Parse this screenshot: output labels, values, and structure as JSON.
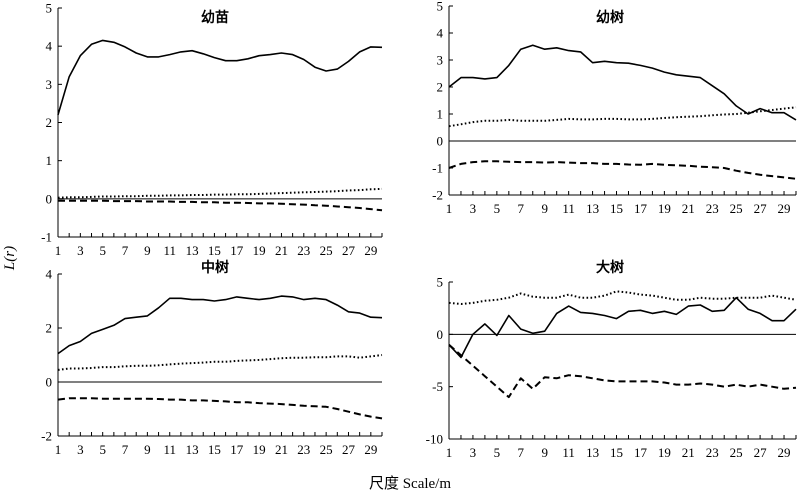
{
  "figure": {
    "ylabel": "L(r)",
    "xlabel": "尺度 Scale/m"
  },
  "chart_data": [
    {
      "type": "line",
      "title": "幼苗",
      "ylim": [
        -1,
        5
      ],
      "yticks": [
        -1,
        0,
        1,
        2,
        3,
        4,
        5
      ],
      "xlim": [
        1,
        30
      ],
      "xticks": [
        1,
        3,
        5,
        7,
        9,
        11,
        13,
        15,
        17,
        19,
        21,
        23,
        25,
        27,
        29
      ],
      "x": [
        1,
        2,
        3,
        4,
        5,
        6,
        7,
        8,
        9,
        10,
        11,
        12,
        13,
        14,
        15,
        16,
        17,
        18,
        19,
        20,
        21,
        22,
        23,
        24,
        25,
        26,
        27,
        28,
        29,
        30
      ],
      "series": [
        {
          "style": "solid",
          "values": [
            2.2,
            3.2,
            3.75,
            4.05,
            4.15,
            4.1,
            3.98,
            3.82,
            3.72,
            3.72,
            3.78,
            3.85,
            3.88,
            3.8,
            3.7,
            3.62,
            3.62,
            3.67,
            3.75,
            3.78,
            3.82,
            3.78,
            3.65,
            3.45,
            3.35,
            3.4,
            3.6,
            3.85,
            3.98,
            3.97
          ]
        },
        {
          "style": "dotted",
          "values": [
            0.03,
            0.04,
            0.04,
            0.05,
            0.06,
            0.06,
            0.07,
            0.07,
            0.08,
            0.08,
            0.09,
            0.09,
            0.1,
            0.1,
            0.11,
            0.11,
            0.12,
            0.12,
            0.13,
            0.14,
            0.15,
            0.16,
            0.17,
            0.18,
            0.19,
            0.2,
            0.22,
            0.23,
            0.25,
            0.26
          ]
        },
        {
          "style": "dashed",
          "values": [
            -0.05,
            -0.05,
            -0.05,
            -0.05,
            -0.05,
            -0.06,
            -0.06,
            -0.06,
            -0.07,
            -0.07,
            -0.07,
            -0.08,
            -0.08,
            -0.09,
            -0.09,
            -0.1,
            -0.1,
            -0.11,
            -0.12,
            -0.12,
            -0.13,
            -0.14,
            -0.15,
            -0.17,
            -0.18,
            -0.2,
            -0.22,
            -0.24,
            -0.27,
            -0.3
          ]
        }
      ]
    },
    {
      "type": "line",
      "title": "幼树",
      "ylim": [
        -2,
        5
      ],
      "yticks": [
        -2,
        -1,
        0,
        1,
        2,
        3,
        4,
        5
      ],
      "xlim": [
        1,
        30
      ],
      "xticks": [
        1,
        3,
        5,
        7,
        9,
        11,
        13,
        15,
        17,
        19,
        21,
        23,
        25,
        27,
        29
      ],
      "x": [
        1,
        2,
        3,
        4,
        5,
        6,
        7,
        8,
        9,
        10,
        11,
        12,
        13,
        14,
        15,
        16,
        17,
        18,
        19,
        20,
        21,
        22,
        23,
        24,
        25,
        26,
        27,
        28,
        29,
        30
      ],
      "series": [
        {
          "style": "solid",
          "values": [
            2.0,
            2.35,
            2.35,
            2.3,
            2.35,
            2.8,
            3.4,
            3.55,
            3.4,
            3.45,
            3.35,
            3.3,
            2.9,
            2.95,
            2.9,
            2.88,
            2.8,
            2.7,
            2.55,
            2.45,
            2.4,
            2.35,
            2.05,
            1.75,
            1.3,
            1.0,
            1.2,
            1.05,
            1.05,
            0.78
          ]
        },
        {
          "style": "dotted",
          "values": [
            0.55,
            0.62,
            0.7,
            0.75,
            0.75,
            0.78,
            0.75,
            0.75,
            0.75,
            0.78,
            0.82,
            0.8,
            0.8,
            0.82,
            0.82,
            0.8,
            0.8,
            0.82,
            0.85,
            0.88,
            0.9,
            0.92,
            0.95,
            0.98,
            1.0,
            1.05,
            1.1,
            1.15,
            1.2,
            1.25
          ]
        },
        {
          "style": "dashed",
          "values": [
            -1.0,
            -0.85,
            -0.78,
            -0.75,
            -0.75,
            -0.77,
            -0.78,
            -0.78,
            -0.8,
            -0.78,
            -0.8,
            -0.82,
            -0.82,
            -0.85,
            -0.85,
            -0.87,
            -0.88,
            -0.85,
            -0.88,
            -0.9,
            -0.92,
            -0.95,
            -0.97,
            -1.0,
            -1.1,
            -1.18,
            -1.25,
            -1.3,
            -1.35,
            -1.4
          ]
        }
      ]
    },
    {
      "type": "line",
      "title": "中树",
      "ylim": [
        -2,
        4
      ],
      "yticks": [
        -2,
        0,
        2,
        4
      ],
      "xlim": [
        1,
        30
      ],
      "xticks": [
        1,
        3,
        5,
        7,
        9,
        11,
        13,
        15,
        17,
        19,
        21,
        23,
        25,
        27,
        29
      ],
      "x": [
        1,
        2,
        3,
        4,
        5,
        6,
        7,
        8,
        9,
        10,
        11,
        12,
        13,
        14,
        15,
        16,
        17,
        18,
        19,
        20,
        21,
        22,
        23,
        24,
        25,
        26,
        27,
        28,
        29,
        30
      ],
      "series": [
        {
          "style": "solid",
          "values": [
            1.05,
            1.35,
            1.5,
            1.8,
            1.95,
            2.1,
            2.35,
            2.4,
            2.45,
            2.75,
            3.1,
            3.1,
            3.05,
            3.05,
            3.0,
            3.05,
            3.15,
            3.1,
            3.05,
            3.1,
            3.18,
            3.15,
            3.05,
            3.1,
            3.05,
            2.85,
            2.6,
            2.55,
            2.4,
            2.38
          ]
        },
        {
          "style": "dotted",
          "values": [
            0.45,
            0.5,
            0.5,
            0.52,
            0.55,
            0.55,
            0.58,
            0.6,
            0.6,
            0.62,
            0.65,
            0.68,
            0.7,
            0.72,
            0.75,
            0.75,
            0.78,
            0.8,
            0.82,
            0.85,
            0.88,
            0.9,
            0.9,
            0.92,
            0.92,
            0.95,
            0.95,
            0.9,
            0.95,
            1.0
          ]
        },
        {
          "style": "dashed",
          "values": [
            -0.65,
            -0.6,
            -0.6,
            -0.6,
            -0.62,
            -0.62,
            -0.62,
            -0.62,
            -0.62,
            -0.63,
            -0.65,
            -0.65,
            -0.68,
            -0.68,
            -0.7,
            -0.72,
            -0.75,
            -0.75,
            -0.78,
            -0.8,
            -0.82,
            -0.85,
            -0.88,
            -0.9,
            -0.92,
            -1.0,
            -1.1,
            -1.2,
            -1.28,
            -1.35
          ]
        }
      ]
    },
    {
      "type": "line",
      "title": "大树",
      "ylim": [
        -10,
        5
      ],
      "yticks": [
        -10,
        -5,
        0,
        5
      ],
      "xlim": [
        1,
        30
      ],
      "xticks": [
        1,
        3,
        5,
        7,
        9,
        11,
        13,
        15,
        17,
        19,
        21,
        23,
        25,
        27,
        29
      ],
      "x": [
        1,
        2,
        3,
        4,
        5,
        6,
        7,
        8,
        9,
        10,
        11,
        12,
        13,
        14,
        15,
        16,
        17,
        18,
        19,
        20,
        21,
        22,
        23,
        24,
        25,
        26,
        27,
        28,
        29,
        30
      ],
      "series": [
        {
          "style": "solid",
          "values": [
            -1.0,
            -2.2,
            0.0,
            1.0,
            -0.1,
            1.8,
            0.5,
            0.1,
            0.3,
            2.0,
            2.7,
            2.1,
            2.0,
            1.8,
            1.5,
            2.2,
            2.3,
            2.0,
            2.2,
            1.9,
            2.7,
            2.8,
            2.2,
            2.3,
            3.5,
            2.4,
            2.0,
            1.3,
            1.3,
            2.4
          ]
        },
        {
          "style": "dotted",
          "values": [
            3.0,
            2.9,
            3.0,
            3.2,
            3.3,
            3.5,
            3.9,
            3.6,
            3.5,
            3.5,
            3.8,
            3.5,
            3.5,
            3.7,
            4.1,
            4.0,
            3.8,
            3.7,
            3.5,
            3.3,
            3.3,
            3.5,
            3.4,
            3.4,
            3.5,
            3.5,
            3.5,
            3.7,
            3.5,
            3.3
          ]
        },
        {
          "style": "dashed",
          "values": [
            -1.0,
            -2.0,
            -3.0,
            -4.0,
            -5.0,
            -6.0,
            -4.2,
            -5.2,
            -4.1,
            -4.2,
            -3.9,
            -4.0,
            -4.2,
            -4.4,
            -4.5,
            -4.5,
            -4.5,
            -4.5,
            -4.6,
            -4.8,
            -4.8,
            -4.7,
            -4.8,
            -5.0,
            -4.8,
            -5.0,
            -4.8,
            -5.0,
            -5.2,
            -5.1
          ]
        }
      ]
    }
  ]
}
